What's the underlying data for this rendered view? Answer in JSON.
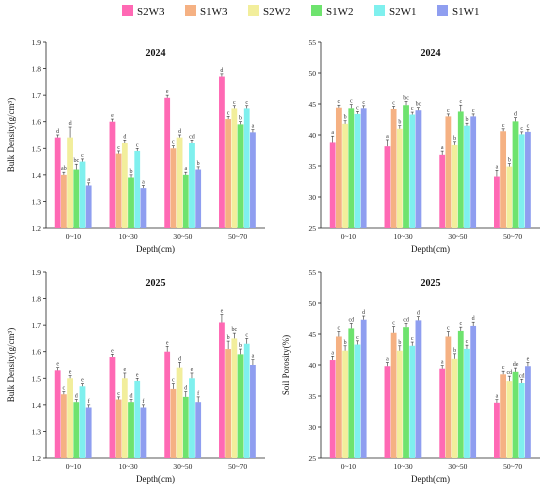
{
  "legend": {
    "items": [
      {
        "name": "S2W3",
        "color": "#ff69b4"
      },
      {
        "name": "S1W3",
        "color": "#f5b183"
      },
      {
        "name": "S2W2",
        "color": "#f2ee9c"
      },
      {
        "name": "S1W2",
        "color": "#6ee36e"
      },
      {
        "name": "S2W1",
        "color": "#7ff0ee"
      },
      {
        "name": "S1W1",
        "color": "#8f9ef0"
      }
    ]
  },
  "chart_data": [
    {
      "type": "bar",
      "title": "2024",
      "xlabel": "Depth(cm)",
      "ylabel": "Bulk Density(g/cm³)",
      "ylim": [
        1.2,
        1.9
      ],
      "yticks": [
        "1.2",
        "1.3",
        "1.4",
        "1.5",
        "1.6",
        "1.7",
        "1.8",
        "1.9"
      ],
      "categories": [
        "0~10",
        "10~30",
        "30~50",
        "50~70"
      ],
      "series": [
        {
          "name": "S2W3",
          "values": [
            1.54,
            1.6,
            1.69,
            1.77
          ],
          "errors": [
            0.01,
            0.01,
            0.01,
            0.01
          ],
          "labels": [
            "d",
            "e",
            "e",
            "d"
          ]
        },
        {
          "name": "S1W3",
          "values": [
            1.4,
            1.48,
            1.5,
            1.61
          ],
          "errors": [
            0.01,
            0.01,
            0.01,
            0.01
          ],
          "labels": [
            "ab",
            "c",
            "c",
            "c"
          ]
        },
        {
          "name": "S2W2",
          "values": [
            1.54,
            1.52,
            1.54,
            1.65
          ],
          "errors": [
            0.04,
            0.01,
            0.01,
            0.01
          ],
          "labels": [
            "d",
            "d",
            "d",
            "c"
          ]
        },
        {
          "name": "S1W2",
          "values": [
            1.42,
            1.39,
            1.4,
            1.59
          ],
          "errors": [
            0.02,
            0.01,
            0.01,
            0.01
          ],
          "labels": [
            "bc",
            "b",
            "a",
            "b"
          ]
        },
        {
          "name": "S2W1",
          "values": [
            1.45,
            1.49,
            1.52,
            1.65
          ],
          "errors": [
            0.01,
            0.01,
            0.01,
            0.01
          ],
          "labels": [
            "c",
            "c",
            "cd",
            "c"
          ]
        },
        {
          "name": "S1W1",
          "values": [
            1.36,
            1.35,
            1.42,
            1.56
          ],
          "errors": [
            0.01,
            0.01,
            0.01,
            0.01
          ],
          "labels": [
            "a",
            "a",
            "b",
            "a"
          ]
        }
      ]
    },
    {
      "type": "bar",
      "title": "2024",
      "xlabel": "Depth(cm)",
      "ylabel": "",
      "ylim": [
        25,
        55
      ],
      "yticks": [
        "25",
        "30",
        "35",
        "40",
        "45",
        "50",
        "55"
      ],
      "categories": [
        "0~10",
        "10~30",
        "30~50",
        "50~70"
      ],
      "series": [
        {
          "name": "S2W3",
          "values": [
            38.8,
            38.2,
            36.8,
            33.3
          ],
          "errors": [
            1.0,
            1.0,
            0.6,
            1.0
          ],
          "labels": [
            "a",
            "a",
            "a",
            "a"
          ]
        },
        {
          "name": "S1W3",
          "values": [
            44.4,
            44.2,
            43.0,
            40.6
          ],
          "errors": [
            0.4,
            0.4,
            0.4,
            0.4
          ],
          "labels": [
            "c",
            "c",
            "c",
            "c"
          ]
        },
        {
          "name": "S2W2",
          "values": [
            41.8,
            41.0,
            38.4,
            34.9
          ],
          "errors": [
            0.5,
            0.5,
            0.5,
            0.5
          ],
          "labels": [
            "b",
            "b",
            "b",
            "b"
          ]
        },
        {
          "name": "S1W2",
          "values": [
            44.3,
            44.8,
            43.8,
            42.2
          ],
          "errors": [
            0.6,
            0.6,
            1.0,
            0.6
          ],
          "labels": [
            "c",
            "bc",
            "c",
            "d"
          ]
        },
        {
          "name": "S2W1",
          "values": [
            43.4,
            43.3,
            41.5,
            40.1
          ],
          "errors": [
            0.4,
            0.4,
            0.4,
            0.4
          ],
          "labels": [
            "c",
            "c",
            "b",
            "c"
          ]
        },
        {
          "name": "S1W1",
          "values": [
            44.3,
            44.0,
            43.0,
            40.5
          ],
          "errors": [
            0.4,
            0.4,
            0.4,
            0.4
          ],
          "labels": [
            "c",
            "bc",
            "c",
            "c"
          ]
        }
      ]
    },
    {
      "type": "bar",
      "title": "2025",
      "xlabel": "Depth(cm)",
      "ylabel": "Bulk Density(g/cm³)",
      "ylim": [
        1.2,
        1.9
      ],
      "yticks": [
        "1.2",
        "1.3",
        "1.4",
        "1.5",
        "1.6",
        "1.7",
        "1.8",
        "1.9"
      ],
      "categories": [
        "0~10",
        "10~30",
        "30~50",
        "50~70"
      ],
      "series": [
        {
          "name": "S2W3",
          "values": [
            1.53,
            1.58,
            1.6,
            1.71
          ],
          "errors": [
            0.01,
            0.01,
            0.02,
            0.03
          ],
          "labels": [
            "e",
            "e",
            "e",
            "e"
          ]
        },
        {
          "name": "S1W3",
          "values": [
            1.44,
            1.42,
            1.46,
            1.61
          ],
          "errors": [
            0.01,
            0.01,
            0.02,
            0.03
          ],
          "labels": [
            "c",
            "c",
            "c",
            "b"
          ]
        },
        {
          "name": "S2W2",
          "values": [
            1.5,
            1.5,
            1.54,
            1.65
          ],
          "errors": [
            0.01,
            0.02,
            0.02,
            0.02
          ],
          "labels": [
            "e",
            "e",
            "d",
            "bc"
          ]
        },
        {
          "name": "S1W2",
          "values": [
            1.41,
            1.41,
            1.43,
            1.59
          ],
          "errors": [
            0.01,
            0.01,
            0.02,
            0.02
          ],
          "labels": [
            "d",
            "d",
            "d",
            "b"
          ]
        },
        {
          "name": "S2W1",
          "values": [
            1.47,
            1.49,
            1.5,
            1.63
          ],
          "errors": [
            0.01,
            0.01,
            0.02,
            0.02
          ],
          "labels": [
            "e",
            "e",
            "e",
            "c"
          ]
        },
        {
          "name": "S1W1",
          "values": [
            1.39,
            1.39,
            1.41,
            1.55
          ],
          "errors": [
            0.01,
            0.01,
            0.02,
            0.02
          ],
          "labels": [
            "f",
            "f",
            "f",
            "a"
          ]
        }
      ]
    },
    {
      "type": "bar",
      "title": "2025",
      "xlabel": "Depth(cm)",
      "ylabel": "Soil Porosity(%)",
      "ylim": [
        25,
        55
      ],
      "yticks": [
        "25",
        "30",
        "35",
        "40",
        "45",
        "50",
        "55"
      ],
      "categories": [
        "0~10",
        "10~30",
        "30~50",
        "50~70"
      ],
      "series": [
        {
          "name": "S2W3",
          "values": [
            40.8,
            39.8,
            39.4,
            33.9
          ],
          "errors": [
            0.6,
            0.6,
            0.5,
            0.5
          ],
          "labels": [
            "a",
            "a",
            "a",
            "a"
          ]
        },
        {
          "name": "S1W3",
          "values": [
            44.6,
            45.2,
            44.6,
            38.5
          ],
          "errors": [
            0.8,
            1.0,
            0.8,
            0.5
          ],
          "labels": [
            "c",
            "c",
            "c",
            "c"
          ]
        },
        {
          "name": "S2W2",
          "values": [
            42.3,
            42.3,
            41.0,
            37.4
          ],
          "errors": [
            0.8,
            0.8,
            0.8,
            0.8
          ],
          "labels": [
            "b",
            "b",
            "b",
            "cd"
          ]
        },
        {
          "name": "S1W2",
          "values": [
            45.9,
            46.1,
            45.5,
            38.9
          ],
          "errors": [
            0.8,
            0.6,
            0.6,
            0.6
          ],
          "labels": [
            "cd",
            "cd",
            "c",
            "de"
          ]
        },
        {
          "name": "S2W1",
          "values": [
            43.3,
            43.1,
            42.6,
            37.1
          ],
          "errors": [
            0.6,
            0.6,
            0.6,
            0.6
          ],
          "labels": [
            "c",
            "c",
            "c",
            "cd"
          ]
        },
        {
          "name": "S1W1",
          "values": [
            47.3,
            47.2,
            46.3,
            39.8
          ],
          "errors": [
            0.6,
            0.6,
            0.6,
            0.6
          ],
          "labels": [
            "d",
            "d",
            "d",
            "e"
          ]
        }
      ]
    }
  ]
}
